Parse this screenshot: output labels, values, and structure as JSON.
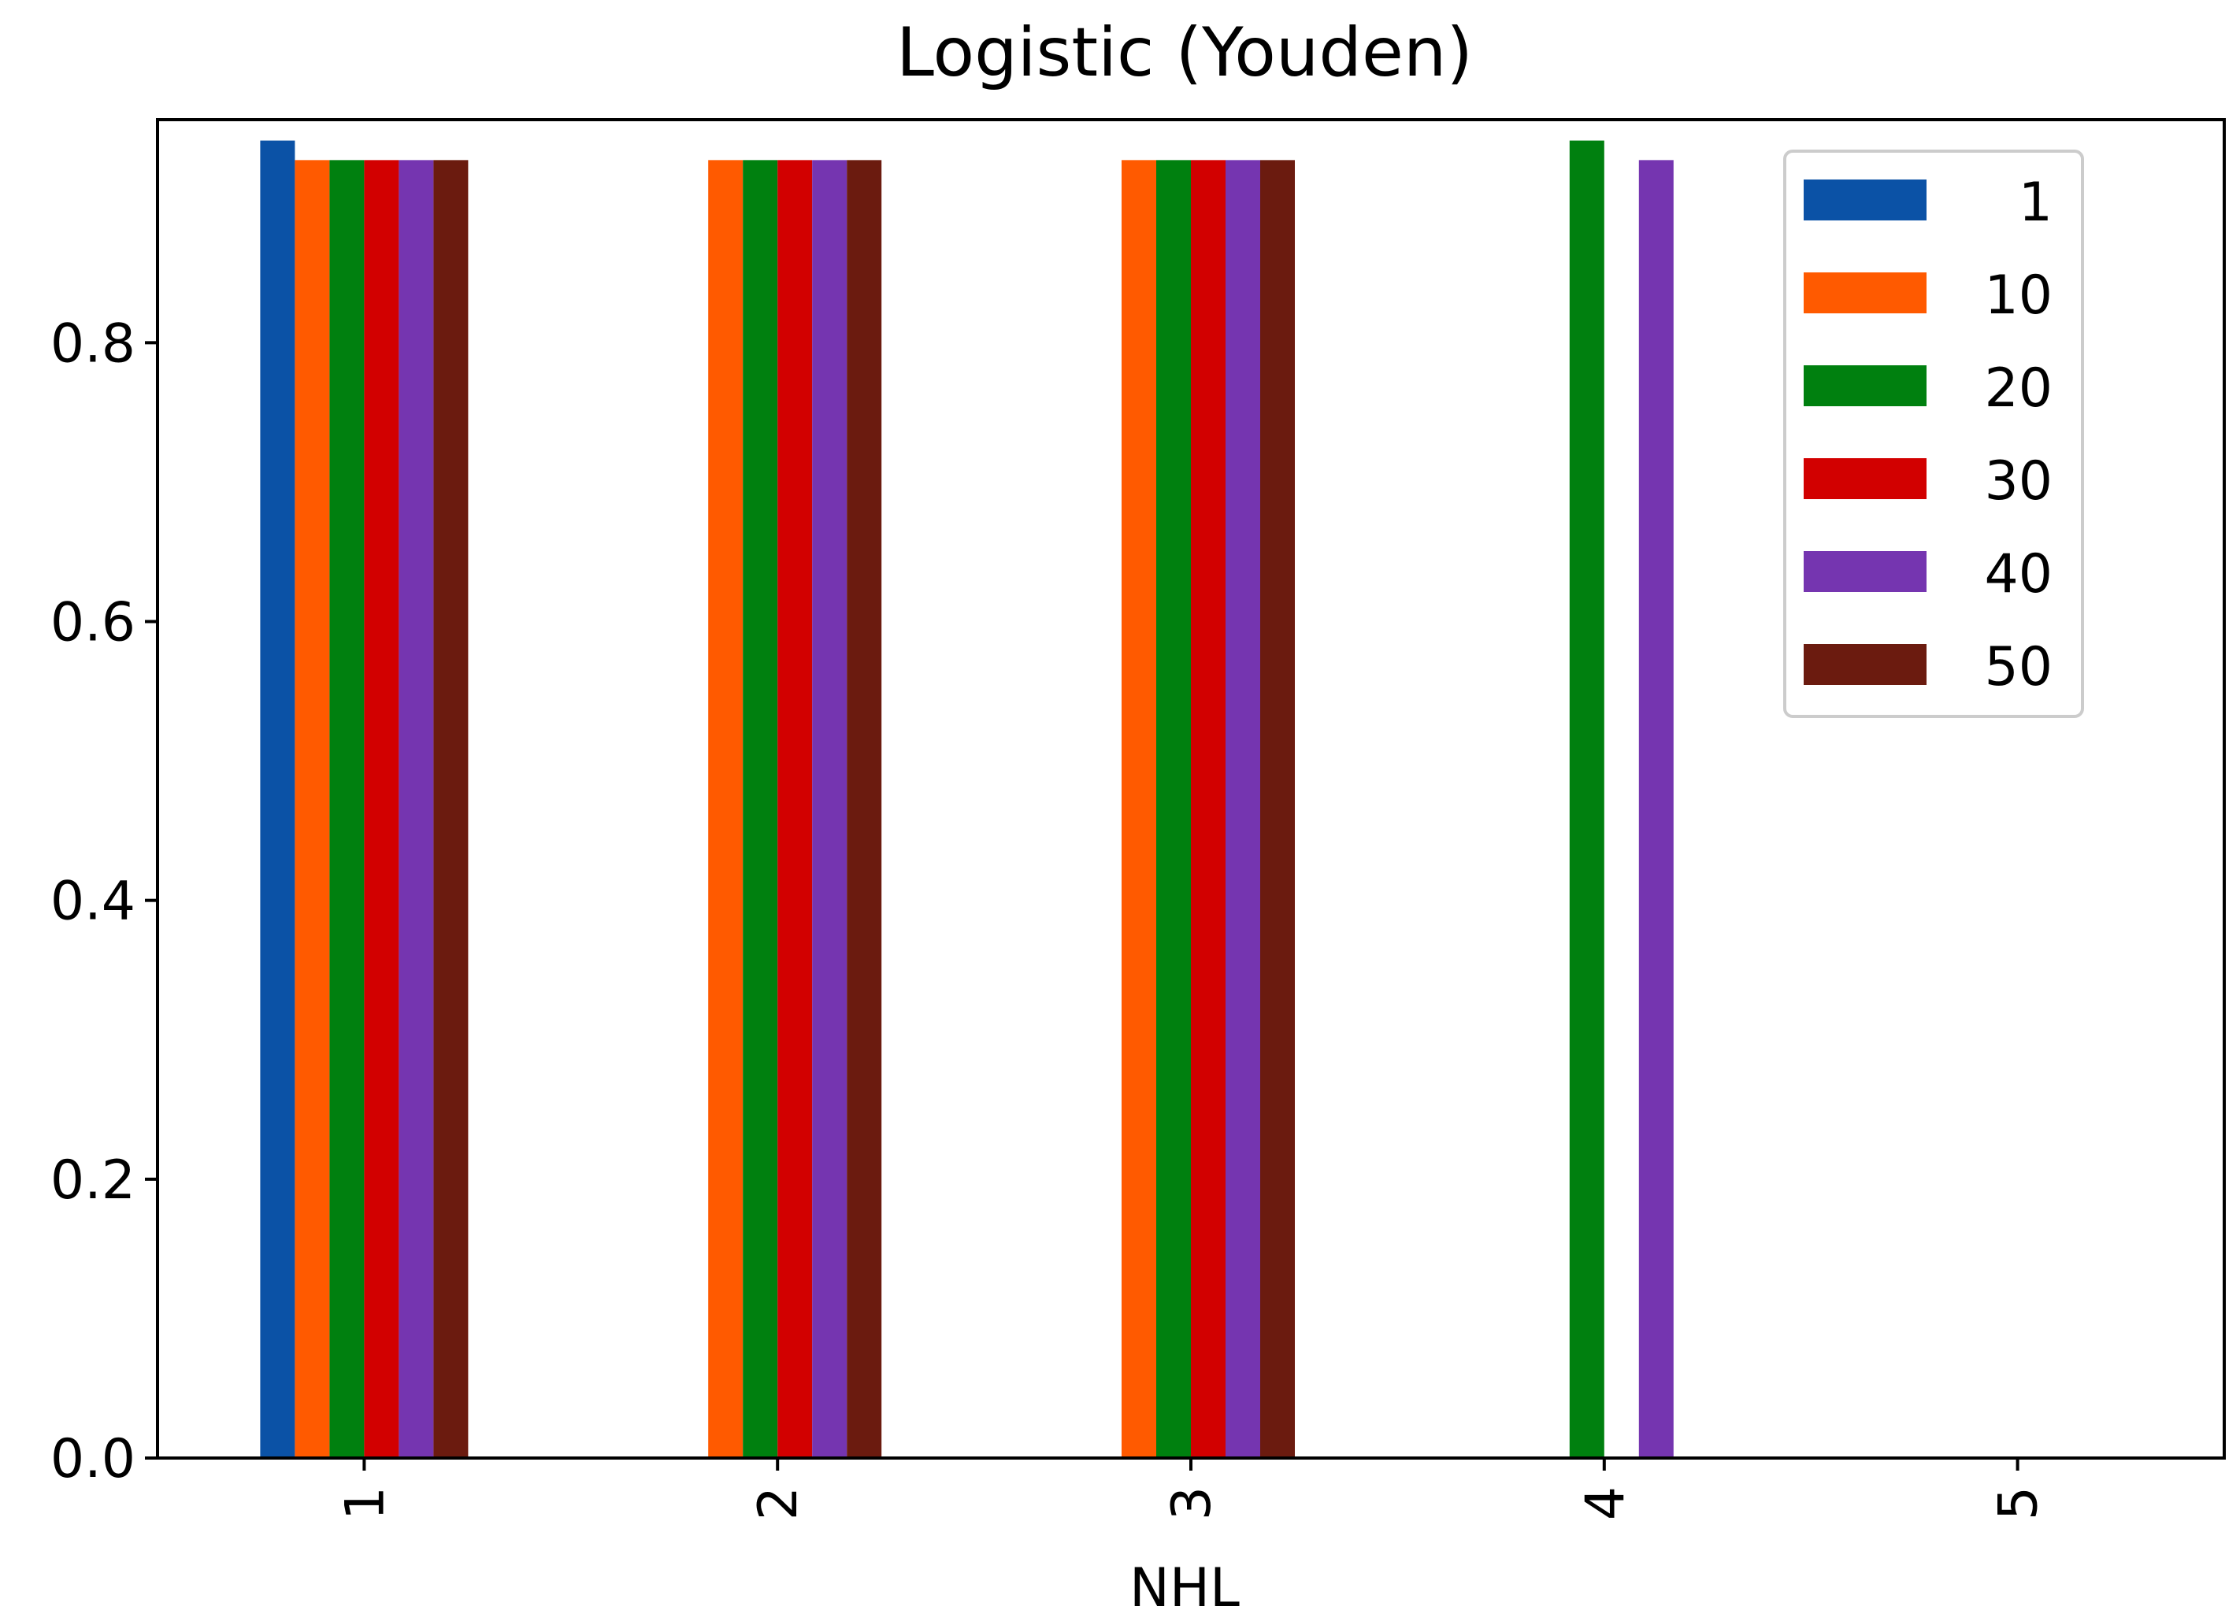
{
  "chart_data": {
    "type": "bar",
    "title": "Logistic (Youden)",
    "xlabel": "NHL",
    "ylabel": "",
    "categories": [
      "1",
      "2",
      "3",
      "4",
      "5"
    ],
    "xtick_rotation": "vertical",
    "ylim": [
      0,
      0.96
    ],
    "yticks": [
      0.0,
      0.2,
      0.4,
      0.6,
      0.8
    ],
    "ytick_labels": [
      "0.0",
      "0.2",
      "0.4",
      "0.6",
      "0.8"
    ],
    "grid": false,
    "legend_position": "top-right",
    "series": [
      {
        "name": "1",
        "color": "#0b52a6",
        "values": [
          0.945,
          0,
          0,
          0,
          0
        ]
      },
      {
        "name": "10",
        "color": "#ff5a00",
        "values": [
          0.931,
          0.931,
          0.931,
          0,
          0
        ]
      },
      {
        "name": "20",
        "color": "#00800f",
        "values": [
          0.931,
          0.931,
          0.931,
          0.945,
          0
        ]
      },
      {
        "name": "30",
        "color": "#d20000",
        "values": [
          0.931,
          0.931,
          0.931,
          0,
          0
        ]
      },
      {
        "name": "40",
        "color": "#7535b0",
        "values": [
          0.931,
          0.931,
          0.931,
          0.931,
          0
        ]
      },
      {
        "name": "50",
        "color": "#6b1b0f",
        "values": [
          0.931,
          0.931,
          0.931,
          0,
          0
        ]
      }
    ]
  }
}
